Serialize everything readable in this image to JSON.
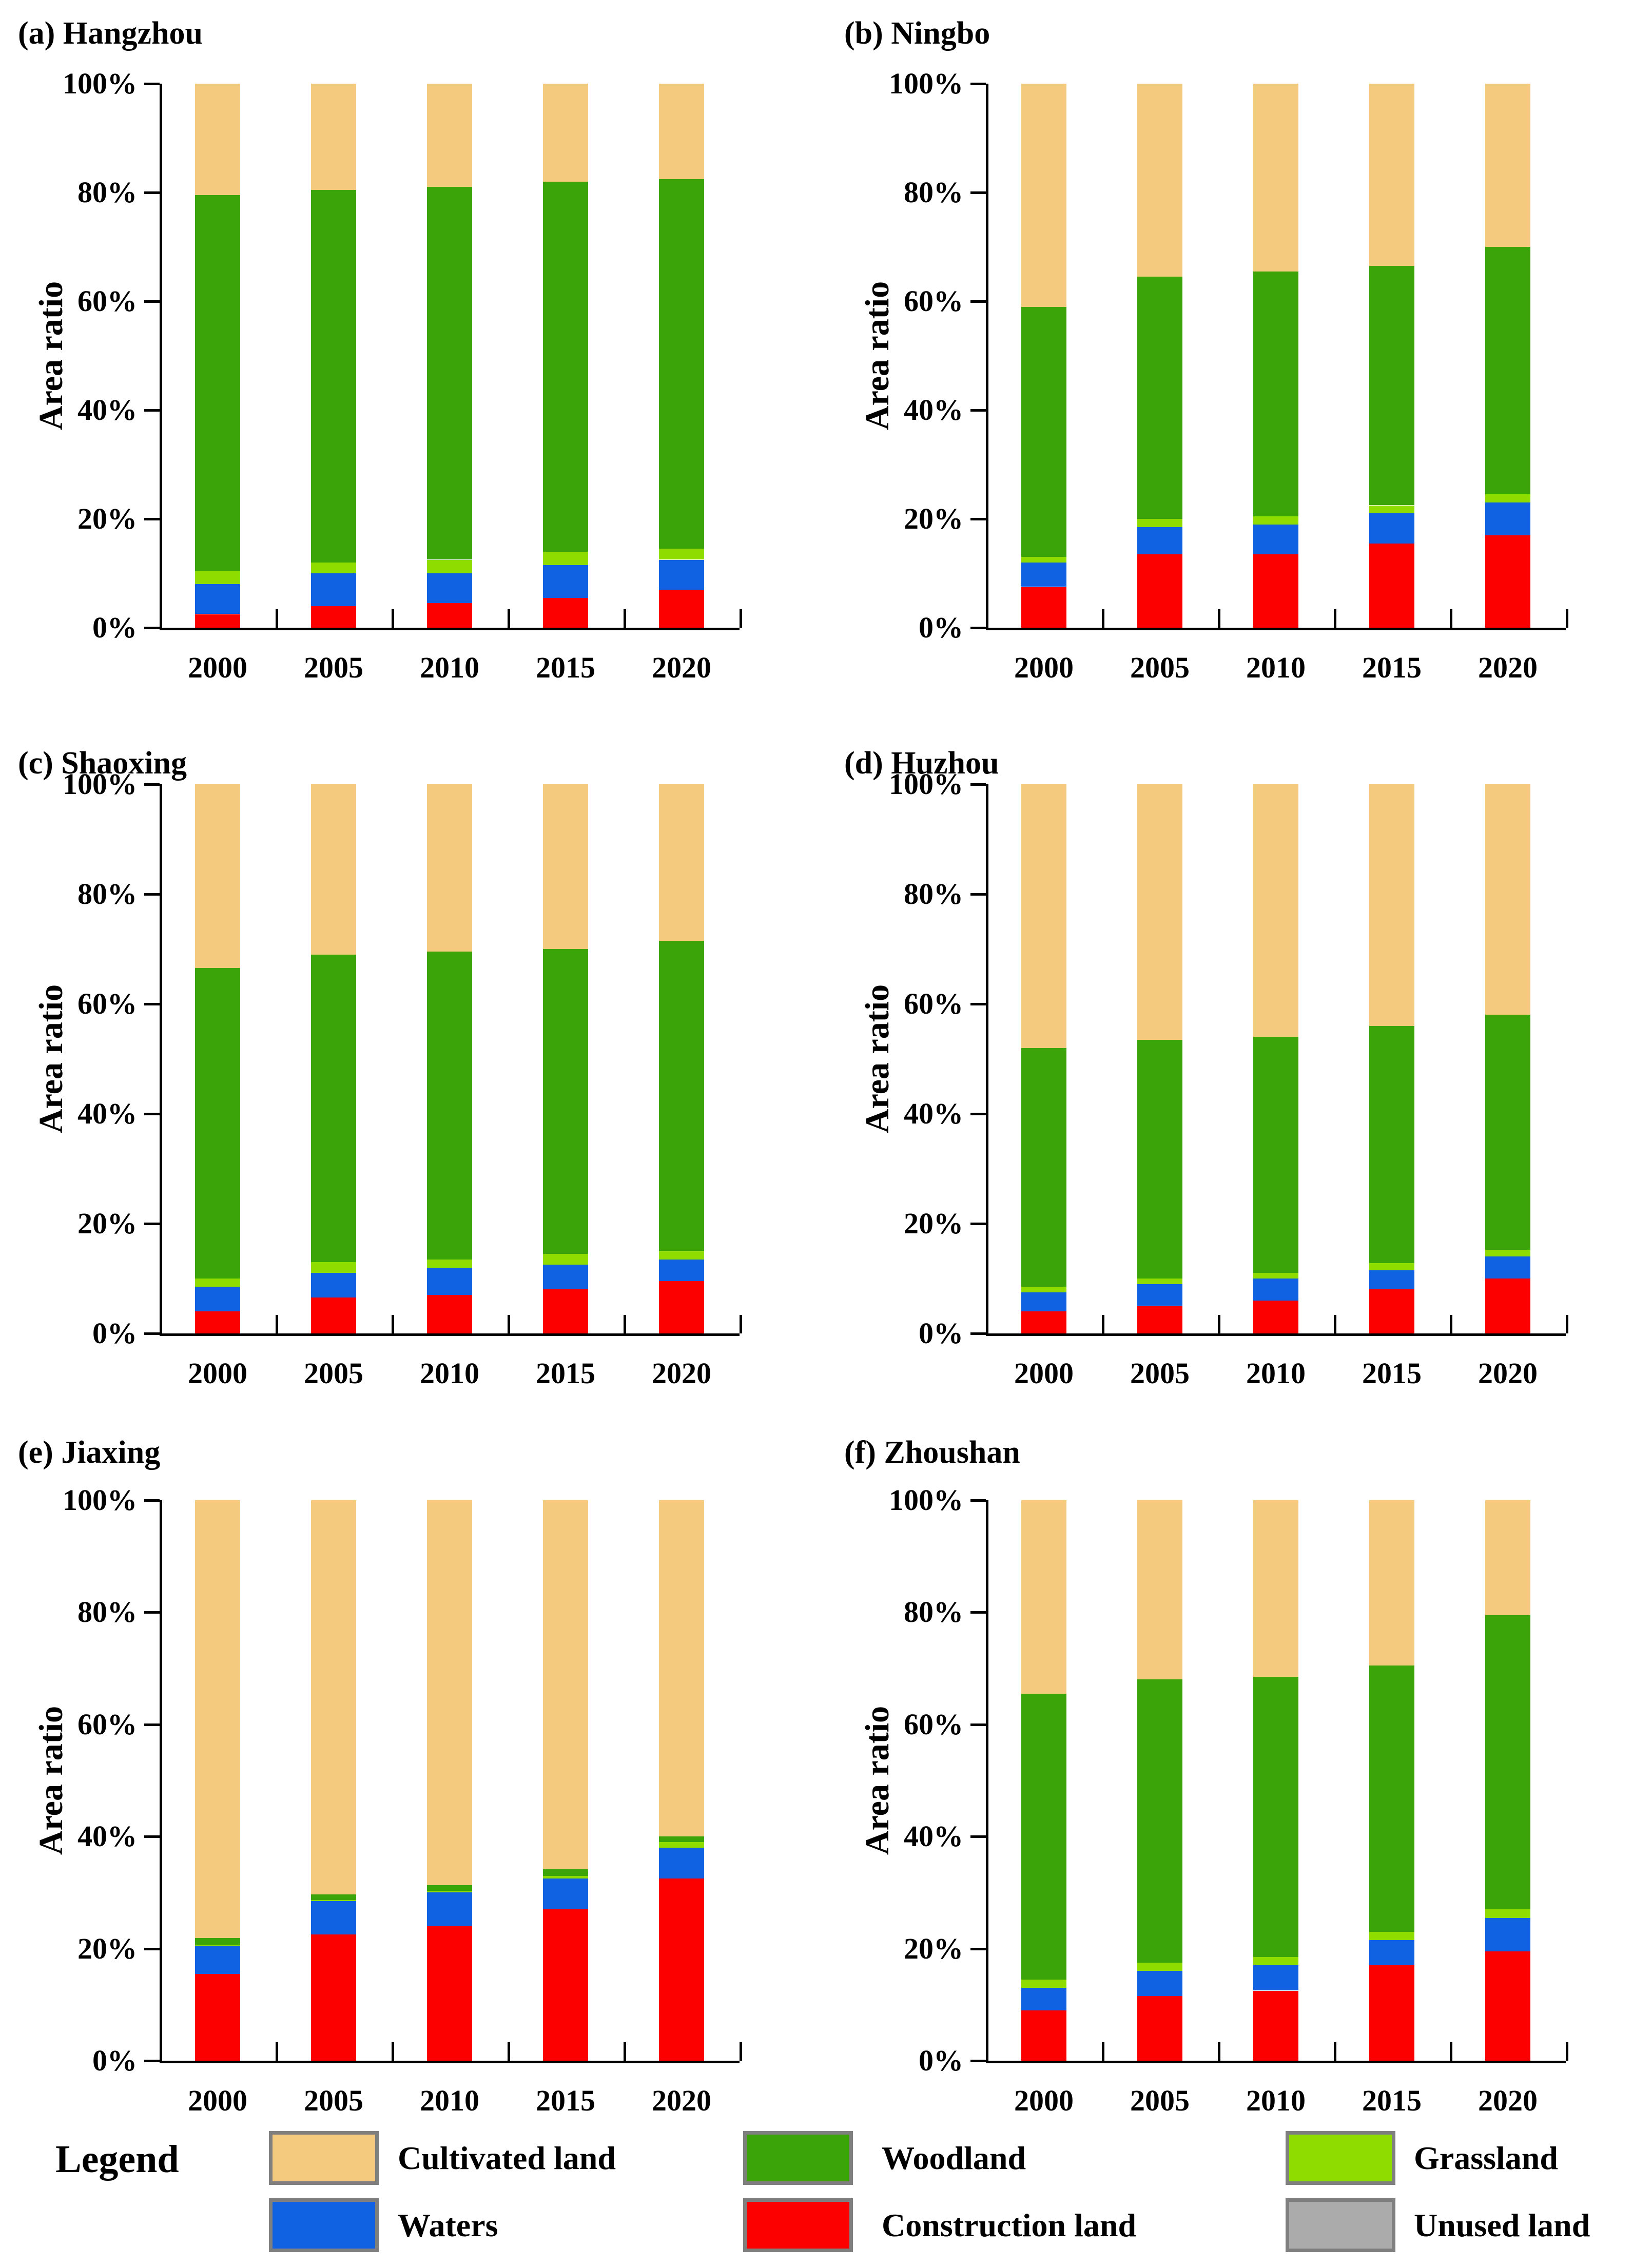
{
  "figure": {
    "background": "#FFFFFF"
  },
  "colors": {
    "cultivated": "#F3CA7E",
    "woodland": "#3AA408",
    "grassland": "#8EDC00",
    "waters": "#1062E2",
    "construction": "#FC0000",
    "unused": "#ABABAB",
    "swatch_border": "#7F7F7F",
    "axis": "#000000"
  },
  "axis": {
    "ylabel": "Area ratio",
    "ytick_labels": [
      "0%",
      "20%",
      "40%",
      "60%",
      "80%",
      "100%"
    ],
    "ylim": [
      0,
      100
    ],
    "years": [
      "2000",
      "2005",
      "2010",
      "2015",
      "2020"
    ]
  },
  "legend": {
    "title": "Legend",
    "entries": [
      {
        "label": "Cultivated land",
        "color": "cultivated"
      },
      {
        "label": "Woodland",
        "color": "woodland"
      },
      {
        "label": "Grassland",
        "color": "grassland"
      },
      {
        "label": "Waters",
        "color": "waters"
      },
      {
        "label": "Construction land",
        "color": "construction"
      },
      {
        "label": "Unused land",
        "color": "unused"
      }
    ]
  },
  "chart_data": [
    {
      "id": "a",
      "title": "(a) Hangzhou",
      "type": "bar",
      "stacked": true,
      "categories": [
        "2000",
        "2005",
        "2010",
        "2015",
        "2020"
      ],
      "ylabel": "Area ratio",
      "ylim": [
        0,
        100
      ],
      "grid": false,
      "series": [
        {
          "name": "Construction land",
          "color": "construction",
          "values": [
            2.5,
            4.0,
            4.5,
            5.5,
            7.0
          ]
        },
        {
          "name": "Waters",
          "color": "waters",
          "values": [
            5.5,
            6.0,
            5.5,
            6.0,
            5.5
          ]
        },
        {
          "name": "Grassland",
          "color": "grassland",
          "values": [
            2.5,
            2.0,
            2.5,
            2.5,
            2.0
          ]
        },
        {
          "name": "Woodland",
          "color": "woodland",
          "values": [
            69.0,
            68.5,
            68.5,
            68.0,
            68.0
          ]
        },
        {
          "name": "Cultivated land",
          "color": "cultivated",
          "values": [
            20.5,
            19.5,
            19.0,
            18.0,
            17.5
          ]
        },
        {
          "name": "Unused land",
          "color": "unused",
          "values": [
            0,
            0,
            0,
            0,
            0
          ]
        }
      ]
    },
    {
      "id": "b",
      "title": "(b) Ningbo",
      "type": "bar",
      "stacked": true,
      "categories": [
        "2000",
        "2005",
        "2010",
        "2015",
        "2020"
      ],
      "ylabel": "Area ratio",
      "ylim": [
        0,
        100
      ],
      "grid": false,
      "series": [
        {
          "name": "Construction land",
          "color": "construction",
          "values": [
            7.5,
            13.5,
            13.5,
            15.5,
            17.0
          ]
        },
        {
          "name": "Waters",
          "color": "waters",
          "values": [
            4.5,
            5.0,
            5.5,
            5.5,
            6.0
          ]
        },
        {
          "name": "Grassland",
          "color": "grassland",
          "values": [
            1.0,
            1.5,
            1.5,
            1.5,
            1.5
          ]
        },
        {
          "name": "Woodland",
          "color": "woodland",
          "values": [
            46.0,
            44.5,
            45.0,
            44.0,
            45.5
          ]
        },
        {
          "name": "Cultivated land",
          "color": "cultivated",
          "values": [
            41.0,
            35.5,
            34.5,
            33.5,
            30.0
          ]
        },
        {
          "name": "Unused land",
          "color": "unused",
          "values": [
            0,
            0,
            0,
            0,
            0
          ]
        }
      ]
    },
    {
      "id": "c",
      "title": "(c) Shaoxing",
      "type": "bar",
      "stacked": true,
      "categories": [
        "2000",
        "2005",
        "2010",
        "2015",
        "2020"
      ],
      "ylabel": "Area ratio",
      "ylim": [
        0,
        100
      ],
      "grid": false,
      "series": [
        {
          "name": "Construction land",
          "color": "construction",
          "values": [
            4.0,
            6.5,
            7.0,
            8.0,
            9.5
          ]
        },
        {
          "name": "Waters",
          "color": "waters",
          "values": [
            4.5,
            4.5,
            5.0,
            4.5,
            4.0
          ]
        },
        {
          "name": "Grassland",
          "color": "grassland",
          "values": [
            1.5,
            2.0,
            1.5,
            2.0,
            1.5
          ]
        },
        {
          "name": "Woodland",
          "color": "woodland",
          "values": [
            56.5,
            56.0,
            56.0,
            55.5,
            56.5
          ]
        },
        {
          "name": "Cultivated land",
          "color": "cultivated",
          "values": [
            33.5,
            31.0,
            30.5,
            30.0,
            28.5
          ]
        },
        {
          "name": "Unused land",
          "color": "unused",
          "values": [
            0,
            0,
            0,
            0,
            0
          ]
        }
      ]
    },
    {
      "id": "d",
      "title": "(d) Huzhou",
      "type": "bar",
      "stacked": true,
      "categories": [
        "2000",
        "2005",
        "2010",
        "2015",
        "2020"
      ],
      "ylabel": "Area ratio",
      "ylim": [
        0,
        100
      ],
      "grid": false,
      "series": [
        {
          "name": "Construction land",
          "color": "construction",
          "values": [
            4.0,
            5.0,
            6.0,
            8.0,
            10.0
          ]
        },
        {
          "name": "Waters",
          "color": "waters",
          "values": [
            3.5,
            4.0,
            4.0,
            3.5,
            4.0
          ]
        },
        {
          "name": "Grassland",
          "color": "grassland",
          "values": [
            1.0,
            1.0,
            1.0,
            1.3,
            1.2
          ]
        },
        {
          "name": "Woodland",
          "color": "woodland",
          "values": [
            43.5,
            43.5,
            43.0,
            43.2,
            42.8
          ]
        },
        {
          "name": "Cultivated land",
          "color": "cultivated",
          "values": [
            48.0,
            46.5,
            46.0,
            44.0,
            42.0
          ]
        },
        {
          "name": "Unused land",
          "color": "unused",
          "values": [
            0,
            0,
            0,
            0,
            0
          ]
        }
      ]
    },
    {
      "id": "e",
      "title": "(e) Jiaxing",
      "type": "bar",
      "stacked": true,
      "categories": [
        "2000",
        "2005",
        "2010",
        "2015",
        "2020"
      ],
      "ylabel": "Area ratio",
      "ylim": [
        0,
        100
      ],
      "grid": false,
      "series": [
        {
          "name": "Construction land",
          "color": "construction",
          "values": [
            15.5,
            22.5,
            24.0,
            27.0,
            32.5
          ]
        },
        {
          "name": "Waters",
          "color": "waters",
          "values": [
            5.0,
            6.0,
            6.0,
            5.5,
            5.5
          ]
        },
        {
          "name": "Grassland",
          "color": "grassland",
          "values": [
            0.2,
            0.2,
            0.3,
            0.5,
            1.0
          ]
        },
        {
          "name": "Woodland",
          "color": "woodland",
          "values": [
            1.2,
            1.0,
            1.0,
            1.2,
            1.0
          ]
        },
        {
          "name": "Cultivated land",
          "color": "cultivated",
          "values": [
            78.1,
            70.3,
            68.7,
            65.8,
            60.0
          ]
        },
        {
          "name": "Unused land",
          "color": "unused",
          "values": [
            0,
            0,
            0,
            0,
            0
          ]
        }
      ]
    },
    {
      "id": "f",
      "title": "(f) Zhoushan",
      "type": "bar",
      "stacked": true,
      "categories": [
        "2000",
        "2005",
        "2010",
        "2015",
        "2020"
      ],
      "ylabel": "Area ratio",
      "ylim": [
        0,
        100
      ],
      "grid": false,
      "series": [
        {
          "name": "Construction land",
          "color": "construction",
          "values": [
            9.0,
            11.5,
            12.5,
            17.0,
            19.5
          ]
        },
        {
          "name": "Waters",
          "color": "waters",
          "values": [
            4.0,
            4.5,
            4.5,
            4.5,
            6.0
          ]
        },
        {
          "name": "Grassland",
          "color": "grassland",
          "values": [
            1.5,
            1.5,
            1.5,
            1.5,
            1.5
          ]
        },
        {
          "name": "Woodland",
          "color": "woodland",
          "values": [
            51.0,
            50.5,
            50.0,
            47.5,
            52.5
          ]
        },
        {
          "name": "Cultivated land",
          "color": "cultivated",
          "values": [
            34.5,
            32.0,
            31.5,
            29.5,
            20.5
          ]
        },
        {
          "name": "Unused land",
          "color": "unused",
          "values": [
            0,
            0,
            0,
            0,
            0
          ]
        }
      ]
    }
  ]
}
